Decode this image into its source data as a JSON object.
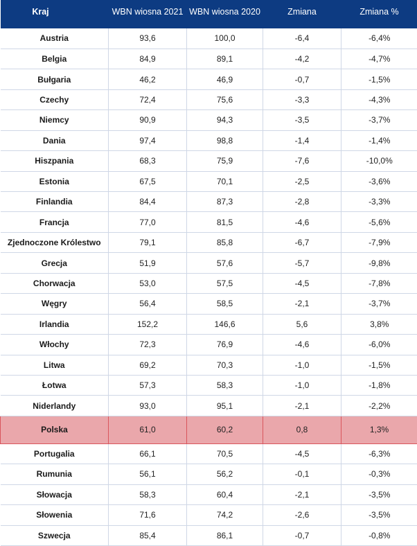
{
  "header": {
    "country": "Kraj",
    "wbn2021": "WBN wiosna 2021",
    "wbn2020": "WBN wiosna 2020",
    "change": "Zmiana",
    "change_pct": "Zmiana %"
  },
  "highlight_color": "#eaa7ab",
  "header_color": "#0d3b82",
  "rows": [
    {
      "country": "Austria",
      "v2021": "93,6",
      "v2020": "100,0",
      "change": "-6,4",
      "pct": "-6,4%"
    },
    {
      "country": "Belgia",
      "v2021": "84,9",
      "v2020": "89,1",
      "change": "-4,2",
      "pct": "-4,7%"
    },
    {
      "country": "Bułgaria",
      "v2021": "46,2",
      "v2020": "46,9",
      "change": "-0,7",
      "pct": "-1,5%"
    },
    {
      "country": "Czechy",
      "v2021": "72,4",
      "v2020": "75,6",
      "change": "-3,3",
      "pct": "-4,3%"
    },
    {
      "country": "Niemcy",
      "v2021": "90,9",
      "v2020": "94,3",
      "change": "-3,5",
      "pct": "-3,7%"
    },
    {
      "country": "Dania",
      "v2021": "97,4",
      "v2020": "98,8",
      "change": "-1,4",
      "pct": "-1,4%"
    },
    {
      "country": "Hiszpania",
      "v2021": "68,3",
      "v2020": "75,9",
      "change": "-7,6",
      "pct": "-10,0%"
    },
    {
      "country": "Estonia",
      "v2021": "67,5",
      "v2020": "70,1",
      "change": "-2,5",
      "pct": "-3,6%"
    },
    {
      "country": "Finlandia",
      "v2021": "84,4",
      "v2020": "87,3",
      "change": "-2,8",
      "pct": "-3,3%"
    },
    {
      "country": "Francja",
      "v2021": "77,0",
      "v2020": "81,5",
      "change": "-4,6",
      "pct": "-5,6%"
    },
    {
      "country": "Zjednoczone Królestwo",
      "v2021": "79,1",
      "v2020": "85,8",
      "change": "-6,7",
      "pct": "-7,9%"
    },
    {
      "country": "Grecja",
      "v2021": "51,9",
      "v2020": "57,6",
      "change": "-5,7",
      "pct": "-9,8%"
    },
    {
      "country": "Chorwacja",
      "v2021": "53,0",
      "v2020": "57,5",
      "change": "-4,5",
      "pct": "-7,8%"
    },
    {
      "country": "Węgry",
      "v2021": "56,4",
      "v2020": "58,5",
      "change": "-2,1",
      "pct": "-3,7%"
    },
    {
      "country": "Irlandia",
      "v2021": "152,2",
      "v2020": "146,6",
      "change": "5,6",
      "pct": "3,8%"
    },
    {
      "country": "Włochy",
      "v2021": "72,3",
      "v2020": "76,9",
      "change": "-4,6",
      "pct": "-6,0%"
    },
    {
      "country": "Litwa",
      "v2021": "69,2",
      "v2020": "70,3",
      "change": "-1,0",
      "pct": "-1,5%"
    },
    {
      "country": "Łotwa",
      "v2021": "57,3",
      "v2020": "58,3",
      "change": "-1,0",
      "pct": "-1,8%"
    },
    {
      "country": "Niderlandy",
      "v2021": "93,0",
      "v2020": "95,1",
      "change": "-2,1",
      "pct": "-2,2%"
    },
    {
      "country": "Polska",
      "v2021": "61,0",
      "v2020": "60,2",
      "change": "0,8",
      "pct": "1,3%",
      "highlight": true
    },
    {
      "country": "Portugalia",
      "v2021": "66,1",
      "v2020": "70,5",
      "change": "-4,5",
      "pct": "-6,3%"
    },
    {
      "country": "Rumunia",
      "v2021": "56,1",
      "v2020": "56,2",
      "change": "-0,1",
      "pct": "-0,3%"
    },
    {
      "country": "Słowacja",
      "v2021": "58,3",
      "v2020": "60,4",
      "change": "-2,1",
      "pct": "-3,5%"
    },
    {
      "country": "Słowenia",
      "v2021": "71,6",
      "v2020": "74,2",
      "change": "-2,6",
      "pct": "-3,5%"
    },
    {
      "country": "Szwecja",
      "v2021": "85,4",
      "v2020": "86,1",
      "change": "-0,7",
      "pct": "-0,8%"
    }
  ]
}
